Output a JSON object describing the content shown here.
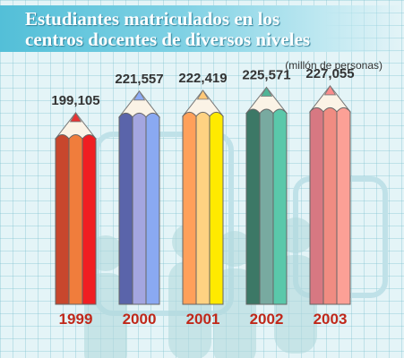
{
  "title_lines": [
    "Estudiantes matriculados en los",
    "centros docentes de diversos niveles"
  ],
  "unit": "(millón de personas)",
  "chart_data": {
    "type": "bar",
    "title": "Estudiantes matriculados en los centros docentes de diversos niveles",
    "ylabel": "(millón de personas)",
    "categories": [
      "1999",
      "2000",
      "2001",
      "2002",
      "2003"
    ],
    "values": [
      199105,
      221557,
      222419,
      225571,
      227055
    ],
    "labels": [
      "199,105",
      "221,557",
      "222,419",
      "225,571",
      "227,055"
    ],
    "ylim": [
      0,
      240000
    ],
    "grid": true,
    "colors": {
      "pencil_palettes": [
        [
          "#c8472d",
          "#f07d3c",
          "#f01e22"
        ],
        [
          "#5a64aa",
          "#a4a6e0",
          "#8aa9f2"
        ],
        [
          "#ffa05a",
          "#ffd282",
          "#ffea00"
        ],
        [
          "#3c7866",
          "#78aaa0",
          "#5ac8aa"
        ],
        [
          "#d77882",
          "#f08c82",
          "#fca096"
        ]
      ],
      "tip": [
        "#e63232",
        "#8caaf5",
        "#ffc878",
        "#50b496",
        "#fa8c8c"
      ],
      "year_label": "#c0281a",
      "title_band": "#53bfd8"
    }
  }
}
